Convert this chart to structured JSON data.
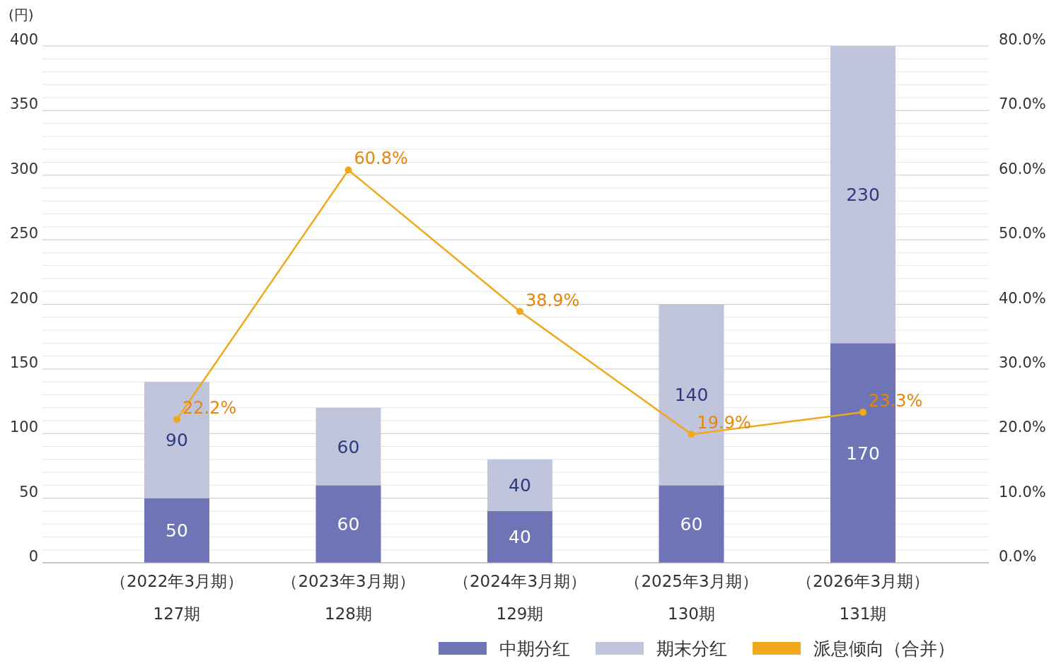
{
  "chart_data": {
    "type": "bar",
    "stacked": true,
    "ylabel": "(円)",
    "categories": [
      "（2022年3月期）\n127期",
      "（2023年3月期）\n128期",
      "（2024年3月期）\n129期",
      "（2025年3月期）\n130期",
      "（2026年3月期）\n131期"
    ],
    "series": [
      {
        "name": "中期分红",
        "color": "#6e74b5",
        "values": [
          50,
          60,
          40,
          60,
          170
        ]
      },
      {
        "name": "期末分红",
        "color": "#c0c5dc",
        "values": [
          90,
          60,
          40,
          140,
          230
        ]
      },
      {
        "name": "派息倾向（合并）",
        "type": "line",
        "axis": "y2",
        "color": "#f0a81c",
        "marker": "circle",
        "values": [
          22.2,
          60.8,
          38.9,
          19.9,
          23.3
        ],
        "value_labels": [
          "22.2%",
          "60.8%",
          "38.9%",
          "19.9%",
          "23.3%"
        ]
      }
    ],
    "data_labels": true,
    "ylim": [
      0,
      400
    ],
    "yticks": [
      0,
      50,
      100,
      150,
      200,
      250,
      300,
      350,
      400
    ],
    "y2lim": [
      0,
      80
    ],
    "y2ticks": [
      {
        "value": 0,
        "label": "0.0%"
      },
      {
        "value": 10,
        "label": "10.0%"
      },
      {
        "value": 20,
        "label": "20.0%"
      },
      {
        "value": 30,
        "label": "30.0%"
      },
      {
        "value": 40,
        "label": "40.0%"
      },
      {
        "value": 50,
        "label": "50.0%"
      },
      {
        "value": 60,
        "label": "60.0%"
      },
      {
        "value": 70,
        "label": "70.0%"
      },
      {
        "value": 80,
        "label": "80.0%"
      }
    ],
    "grid": "y",
    "legend": "bottom right"
  }
}
